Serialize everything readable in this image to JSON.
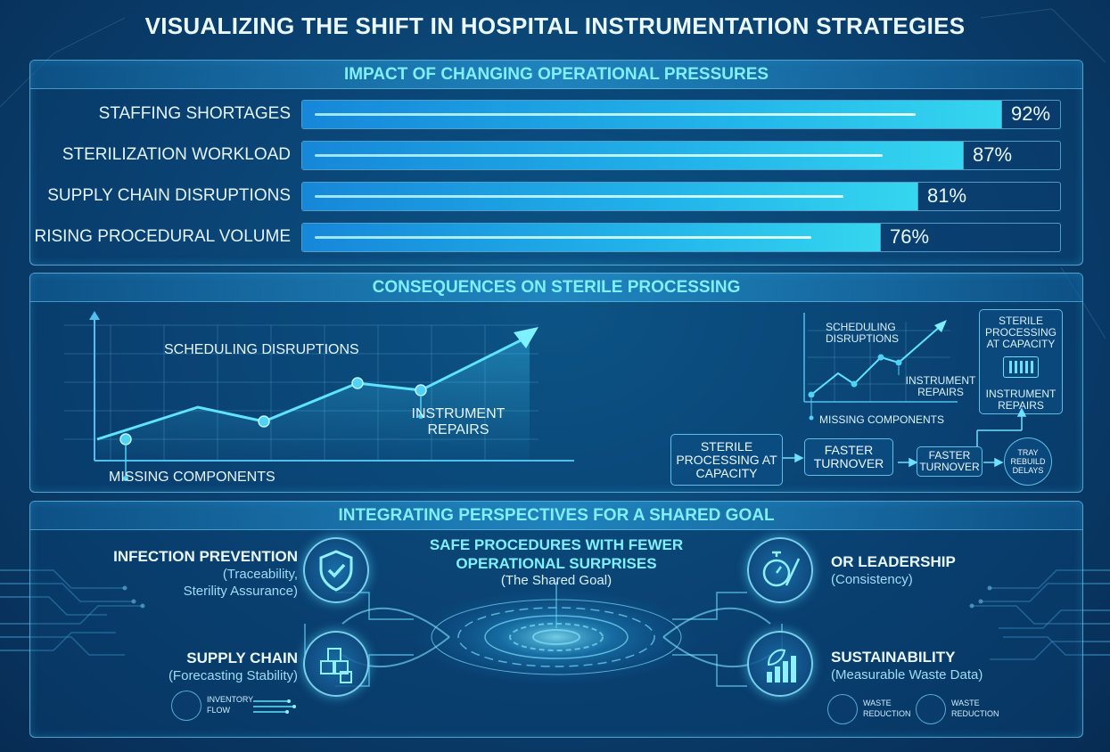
{
  "title": "VISUALIZING THE SHIFT IN HOSPITAL INSTRUMENTATION STRATEGIES",
  "pressures": {
    "heading": "IMPACT OF CHANGING OPERATIONAL PRESSURES",
    "items": [
      {
        "label": "STAFFING SHORTAGES",
        "value": 92,
        "display": "92%"
      },
      {
        "label": "STERILIZATION WORKLOAD",
        "value": 87,
        "display": "87%"
      },
      {
        "label": "SUPPLY CHAIN DISRUPTIONS",
        "value": 81,
        "display": "81%"
      },
      {
        "label": "RISING PROCEDURAL VOLUME",
        "value": 76,
        "display": "76%"
      }
    ]
  },
  "consequences": {
    "heading": "CONSEQUENCES ON STERILE PROCESSING",
    "main_chart": {
      "label_scheduling": "SCHEDULING DISRUPTIONS",
      "label_repairs": "INSTRUMENT REPAIRS",
      "label_missing": "MISSING COMPONENTS"
    },
    "mini_chart": {
      "label_scheduling": "SCHEDULING DISRUPTIONS",
      "label_repairs": "INSTRUMENT REPAIRS",
      "label_missing": "MISSING COMPONENTS"
    },
    "capacity_box": {
      "title": "STERILE PROCESSING AT CAPACITY",
      "sub": "INSTRUMENT REPAIRS"
    },
    "flow": {
      "step1": "STERILE PROCESSING AT CAPACITY",
      "step2": "FASTER TURNOVER",
      "step3": "FASTER TURNOVER",
      "step4": "TRAY REBUILD DELAYS"
    }
  },
  "perspectives": {
    "heading": "INTEGRATING PERSPECTIVES FOR A SHARED GOAL",
    "goal_title": "SAFE PROCEDURES WITH FEWER OPERATIONAL SURPRISES",
    "goal_sub": "(The Shared Goal)",
    "infection": {
      "title": "INFECTION PREVENTION",
      "sub1": "(Traceability,",
      "sub2": "Sterility Assurance)",
      "icon": "shield-check-icon"
    },
    "supply": {
      "title": "SUPPLY CHAIN",
      "sub": "(Forecasting Stability)",
      "icon": "boxes-icon",
      "mini": "INVENTORY FLOW"
    },
    "or": {
      "title": "OR LEADERSHIP",
      "sub": "(Consistency)",
      "icon": "stopwatch-icon"
    },
    "sustain": {
      "title": "SUSTAINABILITY",
      "sub": "(Measurable Waste Data)",
      "icon": "leaf-chart-icon",
      "mini1": "WASTE REDUCTION",
      "mini2": "WASTE REDUCTION"
    }
  },
  "colors": {
    "accent": "#7ff0ff",
    "bar": "#22b4ea",
    "bg": "#0a3f6e"
  }
}
